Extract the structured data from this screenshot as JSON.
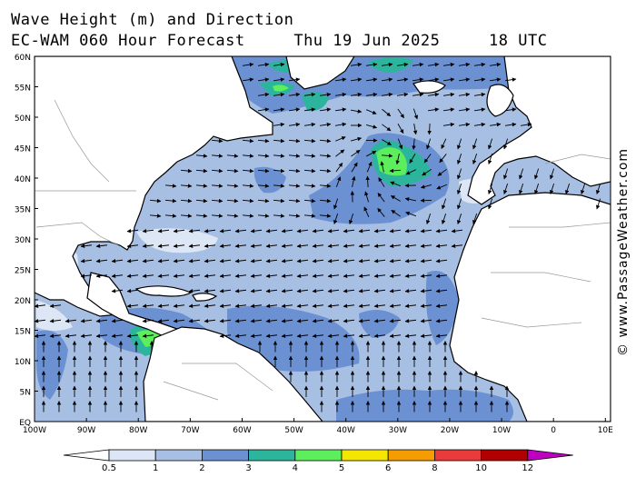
{
  "header": {
    "title": "Wave Height (m) and Direction",
    "model": "EC-WAM 060 Hour Forecast",
    "date": "Thu 19 Jun 2025",
    "time": "18 UTC"
  },
  "watermark": "© www.PassageWeather.com",
  "map": {
    "lat_labels": [
      "60N",
      "55N",
      "50N",
      "45N",
      "40N",
      "35N",
      "30N",
      "25N",
      "20N",
      "15N",
      "10N",
      "5N",
      "EQ"
    ],
    "lat_values": [
      60,
      55,
      50,
      45,
      40,
      35,
      30,
      25,
      20,
      15,
      10,
      5,
      0
    ],
    "lon_labels": [
      "100W",
      "90W",
      "80W",
      "70W",
      "60W",
      "50W",
      "40W",
      "30W",
      "20W",
      "10W",
      "0",
      "10E"
    ],
    "lon_values": [
      -100,
      -90,
      -80,
      -70,
      -60,
      -50,
      -40,
      -30,
      -20,
      -10,
      0,
      10
    ],
    "lon_range": [
      -100,
      11
    ],
    "lat_range": [
      0,
      60
    ]
  },
  "legend": {
    "labels": [
      "0.5",
      "1",
      "2",
      "3",
      "4",
      "5",
      "6",
      "8",
      "10",
      "12"
    ],
    "colors": [
      "#dde6f5",
      "#a8bfe4",
      "#6b91d2",
      "#2db49c",
      "#5cee5c",
      "#f5e600",
      "#f59c00",
      "#eb3a3a",
      "#b20000",
      "#c000c0"
    ]
  },
  "colors": {
    "ocean": "#a8bfe4",
    "low": "#dde6f5",
    "mid": "#6b91d2",
    "teal": "#2db49c",
    "green": "#5cee5c",
    "land": "#ffffff"
  }
}
